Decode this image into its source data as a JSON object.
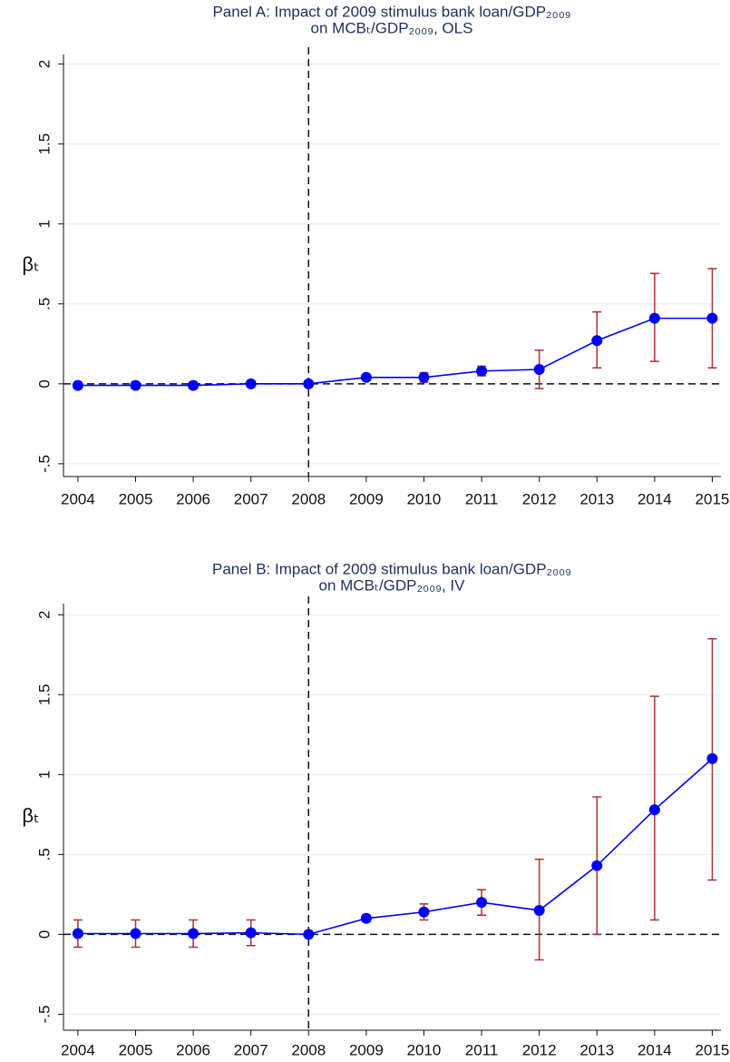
{
  "chart_data": [
    {
      "type": "line",
      "title": "Panel A: Impact of 2009 stimulus bank loan/GDP₂₀₀₉",
      "subtitle": "on MCBₜ/GDP₂₀₀₉, OLS",
      "y_label": "βₜ",
      "x": [
        2004,
        2005,
        2006,
        2007,
        2008,
        2009,
        2010,
        2011,
        2012,
        2013,
        2014,
        2015
      ],
      "series": [
        {
          "color": "#0000ff",
          "error_color": "#a83232",
          "values": [
            -0.01,
            -0.01,
            -0.01,
            0,
            0,
            0.04,
            0.04,
            0.08,
            0.09,
            0.27,
            0.41,
            0.41
          ],
          "ci_lower": [
            -0.03,
            -0.03,
            -0.03,
            -0.01,
            null,
            0.03,
            0.01,
            0.05,
            -0.03,
            0.1,
            0.14,
            0.1
          ],
          "ci_upper": [
            0.01,
            0.01,
            0.01,
            0.01,
            null,
            0.05,
            0.07,
            0.11,
            0.21,
            0.45,
            0.69,
            0.72
          ]
        }
      ],
      "xlim": [
        2003.75,
        2015.15
      ],
      "xticks": [
        2004,
        2005,
        2006,
        2007,
        2008,
        2009,
        2010,
        2011,
        2012,
        2013,
        2014,
        2015
      ],
      "ylim": [
        -0.58,
        2.06
      ],
      "yticks": [
        {
          "value": -0.5,
          "label": "-.5"
        },
        0,
        {
          "value": 0.5,
          "label": ".5"
        },
        1,
        1.5,
        2
      ],
      "xline": 2008,
      "yline": 0,
      "grid": true
    },
    {
      "type": "line",
      "title": "Panel B: Impact of 2009 stimulus bank loan/GDP₂₀₀₉",
      "subtitle": "on MCBₜ/GDP₂₀₀₉, IV",
      "y_label": "βₜ",
      "x": [
        2004,
        2005,
        2006,
        2007,
        2008,
        2009,
        2010,
        2011,
        2012,
        2013,
        2014,
        2015
      ],
      "series": [
        {
          "color": "#0000ff",
          "error_color": "#a83232",
          "values": [
            0.005,
            0.005,
            0.005,
            0.01,
            0,
            0.1,
            0.14,
            0.2,
            0.15,
            0.43,
            0.78,
            1.1
          ],
          "ci_lower": [
            -0.08,
            -0.08,
            -0.08,
            -0.07,
            null,
            0.08,
            0.09,
            0.12,
            -0.16,
            0.0,
            0.09,
            0.34
          ],
          "ci_upper": [
            0.09,
            0.09,
            0.09,
            0.09,
            null,
            0.12,
            0.19,
            0.28,
            0.47,
            0.86,
            1.49,
            1.85
          ]
        }
      ],
      "xlim": [
        2003.75,
        2015.15
      ],
      "xticks": [
        2004,
        2005,
        2006,
        2007,
        2008,
        2009,
        2010,
        2011,
        2012,
        2013,
        2014,
        2015
      ],
      "ylim": [
        -0.6,
        2.07
      ],
      "yticks": [
        {
          "value": -0.5,
          "label": "-.5"
        },
        0,
        {
          "value": 0.5,
          "label": ".5"
        },
        1,
        1.5,
        2
      ],
      "xline": 2008,
      "yline": 0,
      "grid": true
    }
  ]
}
